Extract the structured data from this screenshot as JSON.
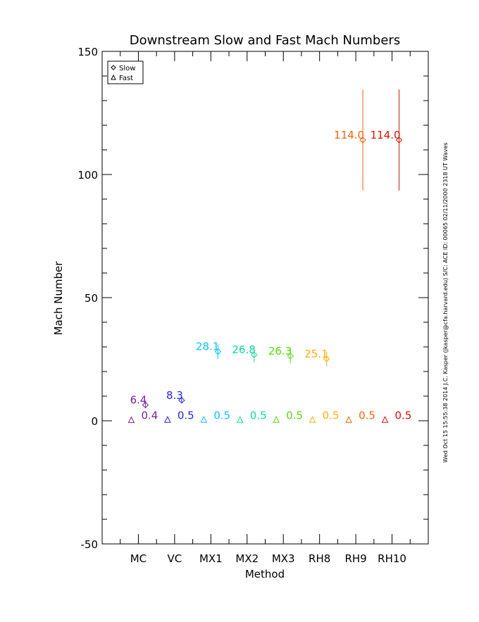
{
  "chart_data": {
    "type": "scatter",
    "title": "Downstream Slow and Fast Mach Numbers",
    "x_label": "Method",
    "y_label": "Mach Number",
    "side_note": "Wed Oct 15 15:55:38 2014   J.C. Kasper (jkasper@cfa.harvard.edu)   S/C: ACE ID: 00065 02/11/2000   2318 UT Waves",
    "categories": [
      "MC",
      "VC",
      "MX1",
      "MX2",
      "MX3",
      "RH8",
      "RH9",
      "RH10"
    ],
    "colors": [
      "#7b1fa2",
      "#1f1fff",
      "#00c8ff",
      "#00e0a0",
      "#50e000",
      "#ffb000",
      "#ff6000",
      "#e01000"
    ],
    "series": [
      {
        "name": "Slow",
        "marker": "diamond",
        "values": [
          6.4,
          8.3,
          28.1,
          26.8,
          26.3,
          25.1,
          114.0,
          114.0
        ],
        "value_labels": [
          "6.4",
          "8.3",
          "28.1",
          "26.8",
          "26.3",
          "25.1",
          "114.0",
          "114.0"
        ],
        "errors": [
          1,
          1,
          3,
          3,
          3,
          3,
          20.5,
          20.5
        ]
      },
      {
        "name": "Fast",
        "marker": "triangle",
        "values": [
          0.4,
          0.5,
          0.5,
          0.5,
          0.5,
          0.5,
          0.5,
          0.5
        ],
        "value_labels": [
          "0.4",
          "0.5",
          "0.5",
          "0.5",
          "0.5",
          "0.5",
          "0.5",
          "0.5"
        ]
      }
    ],
    "ylim": [
      -50,
      150
    ],
    "yticks": [
      -50,
      0,
      50,
      100,
      150
    ],
    "y_minor_ticks": [
      -40,
      -30,
      -20,
      -10,
      10,
      20,
      30,
      40,
      60,
      70,
      80,
      90,
      110,
      120,
      130,
      140
    ],
    "legend": "top-left"
  }
}
